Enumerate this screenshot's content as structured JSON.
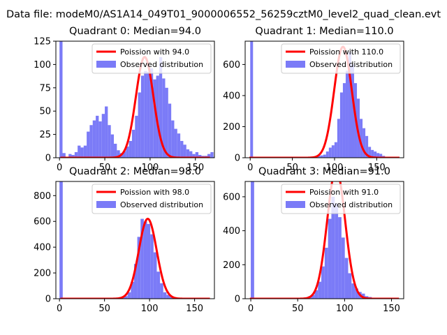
{
  "suptitle": "Data file: modeM0/AS1A14_049T01_9000006552_56259cztM0_level2_quad_clean.evt",
  "legend": {
    "fit_prefix": "Poission with ",
    "observed": "Observed distribution"
  },
  "colors": {
    "hist": "#7b7bf7",
    "fit": "#ff0000",
    "axis": "#000000"
  },
  "chart_data": [
    {
      "type": "bar",
      "title": "Quadrant 0: Median=94.0",
      "median": 94.0,
      "xlim": [
        -4,
        171
      ],
      "ylim": [
        0,
        125
      ],
      "xticks": [
        0,
        50,
        100,
        150
      ],
      "yticks": [
        0,
        25,
        50,
        75,
        100,
        125
      ],
      "bin_start": 0,
      "bin_width": 3.333,
      "counts": [
        125,
        5,
        1,
        4,
        3,
        6,
        13,
        11,
        13,
        28,
        35,
        40,
        45,
        39,
        47,
        55,
        35,
        25,
        15,
        8,
        5,
        7,
        12,
        18,
        30,
        45,
        70,
        88,
        93,
        92,
        96,
        84,
        88,
        108,
        85,
        75,
        58,
        40,
        31,
        26,
        18,
        14,
        9,
        7,
        4,
        6,
        3,
        2,
        2,
        4,
        6,
        1
      ],
      "fit": {
        "mu": 94.0,
        "scale": 1.0
      }
    },
    {
      "type": "bar",
      "title": "Quadrant 1: Median=110.0",
      "median": 110.0,
      "xlim": [
        -6,
        182
      ],
      "ylim": [
        0,
        750
      ],
      "xticks": [
        0,
        50,
        100,
        150
      ],
      "yticks": [
        0,
        200,
        400,
        600
      ],
      "bin_start": 0,
      "bin_width": 3.33,
      "counts": [
        750,
        0,
        0,
        0,
        0,
        0,
        0,
        0,
        0,
        0,
        0,
        0,
        0,
        0,
        0,
        0,
        0,
        0,
        0,
        0,
        3,
        5,
        5,
        10,
        12,
        15,
        20,
        40,
        65,
        80,
        100,
        250,
        420,
        480,
        560,
        680,
        600,
        480,
        380,
        250,
        190,
        140,
        70,
        50,
        40,
        30,
        25,
        12,
        6,
        3,
        2,
        0,
        0,
        0
      ],
      "fit": {
        "mu": 110.0,
        "scale": 1.05
      }
    },
    {
      "type": "bar",
      "title": "Quadrant 2: Median=98.0",
      "median": 98.0,
      "xlim": [
        -4,
        172
      ],
      "ylim": [
        0,
        910
      ],
      "xticks": [
        0,
        50,
        100,
        150
      ],
      "yticks": [
        0,
        200,
        400,
        600,
        800
      ],
      "bin_start": 0,
      "bin_width": 3.6,
      "counts": [
        910,
        0,
        0,
        0,
        0,
        0,
        0,
        0,
        0,
        0,
        0,
        0,
        0,
        0,
        0,
        0,
        2,
        3,
        4,
        8,
        20,
        50,
        130,
        270,
        480,
        620,
        600,
        580,
        500,
        360,
        210,
        120,
        50,
        30,
        15,
        8,
        5,
        2,
        1,
        0,
        0,
        0,
        0,
        0,
        0
      ],
      "fit": {
        "mu": 98.0,
        "scale": 1.0
      }
    },
    {
      "type": "bar",
      "title": "Quadrant 3: Median=91.0",
      "median": 91.0,
      "xlim": [
        -6,
        163
      ],
      "ylim": [
        0,
        690
      ],
      "xticks": [
        0,
        50,
        100,
        150
      ],
      "yticks": [
        0,
        200,
        400,
        600
      ],
      "bin_start": 0,
      "bin_width": 3.58,
      "counts": [
        690,
        0,
        0,
        0,
        0,
        0,
        0,
        0,
        0,
        0,
        0,
        0,
        0,
        2,
        3,
        5,
        8,
        14,
        22,
        50,
        100,
        190,
        300,
        470,
        600,
        560,
        480,
        360,
        240,
        150,
        90,
        60,
        40,
        30,
        15,
        10,
        5,
        3,
        2,
        1,
        0,
        0,
        0
      ],
      "fit": {
        "mu": 91.0,
        "scale": 1.27
      }
    }
  ]
}
